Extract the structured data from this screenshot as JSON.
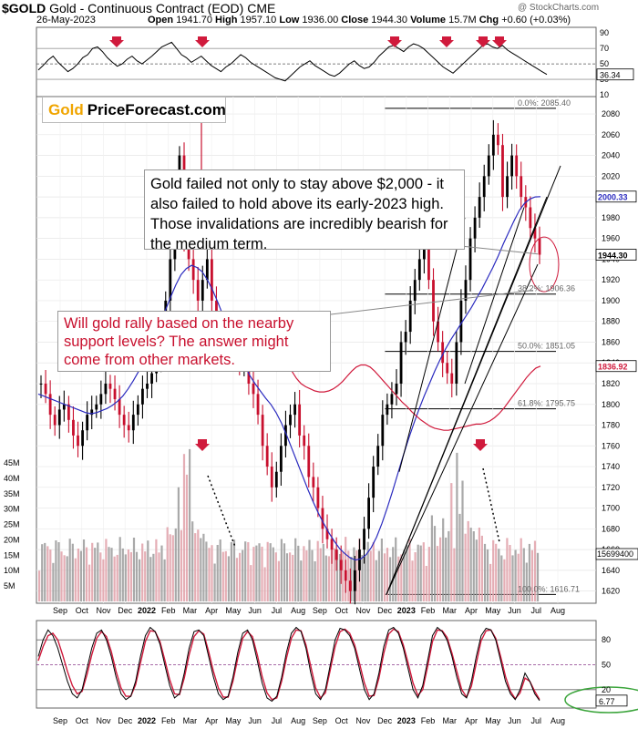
{
  "header": {
    "symbol": "$GOLD",
    "description": "Gold - Continuous Contract (EOD)",
    "exchange": "CME",
    "watermark": "@ StockCharts.com",
    "date": "26-May-2023",
    "open_label": "Open",
    "open": "1941.70",
    "high_label": "High",
    "high": "1957.10",
    "low_label": "Low",
    "low": "1936.00",
    "close_label": "Close",
    "close": "1944.30",
    "volume_label": "Volume",
    "volume": "15.7M",
    "chg_label": "Chg",
    "chg": "+0.60 (+0.03%)"
  },
  "logo": {
    "gold": "Gold",
    "rest": "PriceForecast.com"
  },
  "annotations": {
    "a1": "Gold failed not only to stay above $2,000 - it also failed to hold above its early-2023 high. Those invalidations are incredibly bearish for the medium term.",
    "a2": "Will gold rally based on the nearby support levels? The answer might come from other markets."
  },
  "colors": {
    "accent_red": "#c8102e",
    "ma_blue": "#2b2bbf",
    "ma_red": "#d01a3c",
    "logo_gold": "#f0a500"
  },
  "chart_data": [
    {
      "type": "line",
      "name": "RSI panel",
      "yticks": [
        10,
        30,
        50,
        70,
        90
      ],
      "ylim": [
        10,
        95
      ],
      "value_label": "36.34",
      "levels": [
        30,
        50,
        70
      ],
      "values": [
        42,
        48,
        55,
        60,
        52,
        46,
        40,
        44,
        50,
        58,
        62,
        70,
        72,
        66,
        58,
        52,
        47,
        50,
        56,
        60,
        54,
        50,
        55,
        60,
        66,
        72,
        75,
        78,
        70,
        62,
        58,
        52,
        56,
        60,
        54,
        48,
        44,
        40,
        46,
        50,
        56,
        62,
        58,
        52,
        48,
        44,
        40,
        36,
        32,
        30,
        28,
        34,
        40,
        46,
        50,
        54,
        48,
        44,
        40,
        36,
        34,
        38,
        44,
        50,
        54,
        48,
        44,
        46,
        52,
        60,
        66,
        72,
        74,
        70,
        66,
        72,
        76,
        74,
        70,
        64,
        58,
        52,
        46,
        42,
        38,
        44,
        50,
        56,
        62,
        68,
        74,
        76,
        72,
        70,
        74,
        68,
        64,
        60,
        56,
        52,
        48,
        44,
        40,
        36.3
      ]
    },
    {
      "type": "line",
      "name": "Price panel",
      "ylim": [
        1610,
        2095
      ],
      "yticks": [
        1620,
        1640,
        1660,
        1680,
        1700,
        1720,
        1740,
        1760,
        1780,
        1800,
        1820,
        1840,
        1860,
        1880,
        1900,
        1920,
        1940,
        1960,
        1980,
        2000,
        2020,
        2040,
        2060,
        2080
      ],
      "price_label": "1944.30",
      "ma50_label": "2000.33",
      "ma200_label": "1836.92",
      "vol_ma_label": "15699400",
      "fib_levels": [
        {
          "label": "0.0%: 2085.40",
          "value": 2085.4
        },
        {
          "label": "38.2%: 1906.36",
          "value": 1906.36
        },
        {
          "label": "50.0%: 1851.05",
          "value": 1851.05
        },
        {
          "label": "61.8%: 1795.75",
          "value": 1795.75
        },
        {
          "label": "100.0%: 1616.71",
          "value": 1616.71
        }
      ],
      "close": [
        1820,
        1810,
        1790,
        1780,
        1795,
        1800,
        1785,
        1770,
        1760,
        1775,
        1790,
        1795,
        1800,
        1810,
        1820,
        1815,
        1805,
        1790,
        1780,
        1775,
        1790,
        1800,
        1815,
        1820,
        1830,
        1845,
        1860,
        1900,
        1940,
        1980,
        2040,
        1960,
        1940,
        1920,
        1900,
        1920,
        1940,
        1900,
        1880,
        1860,
        1850,
        1870,
        1860,
        1840,
        1845,
        1820,
        1810,
        1790,
        1760,
        1740,
        1720,
        1735,
        1760,
        1780,
        1790,
        1800,
        1770,
        1760,
        1730,
        1720,
        1700,
        1680,
        1670,
        1660,
        1650,
        1640,
        1630,
        1620,
        1640,
        1660,
        1680,
        1710,
        1740,
        1760,
        1790,
        1800,
        1810,
        1820,
        1860,
        1870,
        1900,
        1920,
        1940,
        1950,
        1920,
        1880,
        1860,
        1840,
        1830,
        1820,
        1860,
        1900,
        1920,
        1960,
        1980,
        2000,
        2020,
        2040,
        2060,
        2050,
        2000,
        2020,
        2040,
        2020,
        2000,
        1990,
        1970,
        1960,
        1944.3
      ],
      "ma50": [
        1810,
        1808,
        1806,
        1804,
        1802,
        1800,
        1798,
        1796,
        1794,
        1792,
        1791,
        1792,
        1794,
        1796,
        1799,
        1803,
        1808,
        1815,
        1823,
        1832,
        1842,
        1853,
        1866,
        1878,
        1890,
        1903,
        1915,
        1925,
        1931,
        1934,
        1932,
        1928,
        1920,
        1910,
        1898,
        1885,
        1872,
        1860,
        1848,
        1838,
        1828,
        1820,
        1813,
        1806,
        1800,
        1792,
        1782,
        1770,
        1757,
        1744,
        1731,
        1718,
        1706,
        1695,
        1685,
        1676,
        1668,
        1661,
        1656,
        1652,
        1650,
        1651,
        1655,
        1662,
        1672,
        1685,
        1700,
        1716,
        1733,
        1750,
        1766,
        1781,
        1795,
        1808,
        1820,
        1832,
        1843,
        1853,
        1862,
        1870,
        1878,
        1886,
        1894,
        1903,
        1912,
        1922,
        1932,
        1943,
        1955,
        1966,
        1977,
        1987,
        1994,
        1998,
        2000,
        2000.3
      ],
      "ma200": [
        1860,
        1855,
        1848,
        1840,
        1832,
        1825,
        1820,
        1817,
        1815,
        1813,
        1812,
        1812,
        1813,
        1815,
        1818,
        1822,
        1827,
        1832,
        1836,
        1838,
        1838,
        1836,
        1832,
        1827,
        1822,
        1817,
        1812,
        1807,
        1802,
        1798,
        1793,
        1789,
        1785,
        1782,
        1779,
        1777,
        1776,
        1775,
        1775,
        1776,
        1777,
        1778,
        1779,
        1780,
        1781,
        1781,
        1782,
        1784,
        1787,
        1791,
        1796,
        1802,
        1808,
        1814,
        1820,
        1826,
        1831,
        1835,
        1836.9
      ]
    },
    {
      "type": "bar",
      "name": "Volume",
      "yticks": [
        "5M",
        "10M",
        "15M",
        "20M",
        "25M",
        "30M",
        "35M",
        "40M",
        "45M"
      ],
      "ylim": [
        0,
        45
      ],
      "unit": "M"
    },
    {
      "type": "line",
      "name": "Stochastic panel",
      "yticks": [
        20,
        50,
        80
      ],
      "ylim": [
        0,
        100
      ],
      "value_label": "6.77",
      "levels": [
        20,
        50,
        80
      ],
      "fast": [
        60,
        80,
        92,
        85,
        70,
        50,
        30,
        15,
        10,
        20,
        45,
        70,
        88,
        92,
        80,
        60,
        35,
        15,
        8,
        12,
        30,
        60,
        85,
        95,
        90,
        75,
        50,
        25,
        10,
        15,
        40,
        70,
        90,
        92,
        85,
        60,
        35,
        15,
        8,
        12,
        35,
        65,
        88,
        92,
        80,
        55,
        28,
        10,
        6,
        12,
        35,
        65,
        88,
        95,
        90,
        70,
        40,
        15,
        8,
        20,
        50,
        80,
        94,
        92,
        85,
        70,
        45,
        20,
        8,
        15,
        40,
        72,
        92,
        95,
        88,
        70,
        45,
        20,
        10,
        25,
        55,
        85,
        95,
        90,
        80,
        60,
        35,
        15,
        10,
        30,
        60,
        85,
        94,
        92,
        80,
        55,
        30,
        15,
        8,
        20,
        40,
        30,
        15,
        6.77
      ],
      "slow": [
        55,
        72,
        85,
        88,
        80,
        62,
        42,
        25,
        15,
        18,
        38,
        62,
        82,
        90,
        84,
        66,
        42,
        22,
        12,
        12,
        26,
        52,
        78,
        91,
        90,
        78,
        56,
        32,
        15,
        14,
        34,
        62,
        84,
        91,
        87,
        66,
        42,
        22,
        11,
        11,
        30,
        58,
        82,
        90,
        84,
        62,
        36,
        16,
        8,
        10,
        30,
        58,
        82,
        92,
        91,
        74,
        48,
        22,
        10,
        16,
        44,
        72,
        90,
        93,
        88,
        74,
        52,
        28,
        12,
        13,
        34,
        64,
        87,
        93,
        90,
        74,
        52,
        28,
        13,
        20,
        48,
        78,
        92,
        91,
        83,
        64,
        42,
        20,
        11,
        24,
        52,
        79,
        91,
        92,
        82,
        60,
        36,
        18,
        9,
        16,
        34,
        30,
        18,
        8
      ]
    }
  ],
  "xaxis": {
    "months": [
      "Sep",
      "Oct",
      "Nov",
      "Dec",
      "2022",
      "Feb",
      "Mar",
      "Apr",
      "May",
      "Jun",
      "Jul",
      "Aug",
      "Sep",
      "Oct",
      "Nov",
      "Dec",
      "2023",
      "Feb",
      "Mar",
      "Apr",
      "May",
      "Jun",
      "Jul",
      "Aug"
    ]
  }
}
